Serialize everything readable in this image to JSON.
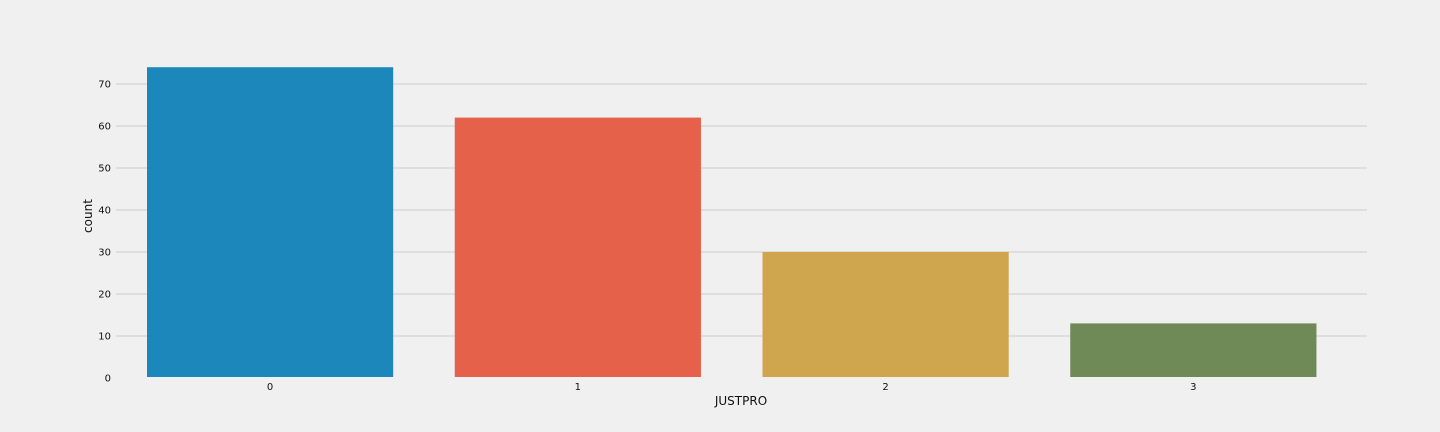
{
  "chart_data": {
    "type": "bar",
    "title": "",
    "xlabel": "JUSTPRO",
    "ylabel": "count",
    "categories": [
      "0",
      "1",
      "2",
      "3"
    ],
    "values": [
      74,
      62,
      30,
      13
    ],
    "colors": [
      "#1b87bb",
      "#e5614a",
      "#cfa64e",
      "#6f8957"
    ],
    "ylim": [
      0,
      75
    ],
    "yticks": [
      0,
      10,
      20,
      30,
      40,
      50,
      60,
      70
    ],
    "grid": true,
    "grid_axis": "y",
    "background": "#f0f0f0"
  }
}
